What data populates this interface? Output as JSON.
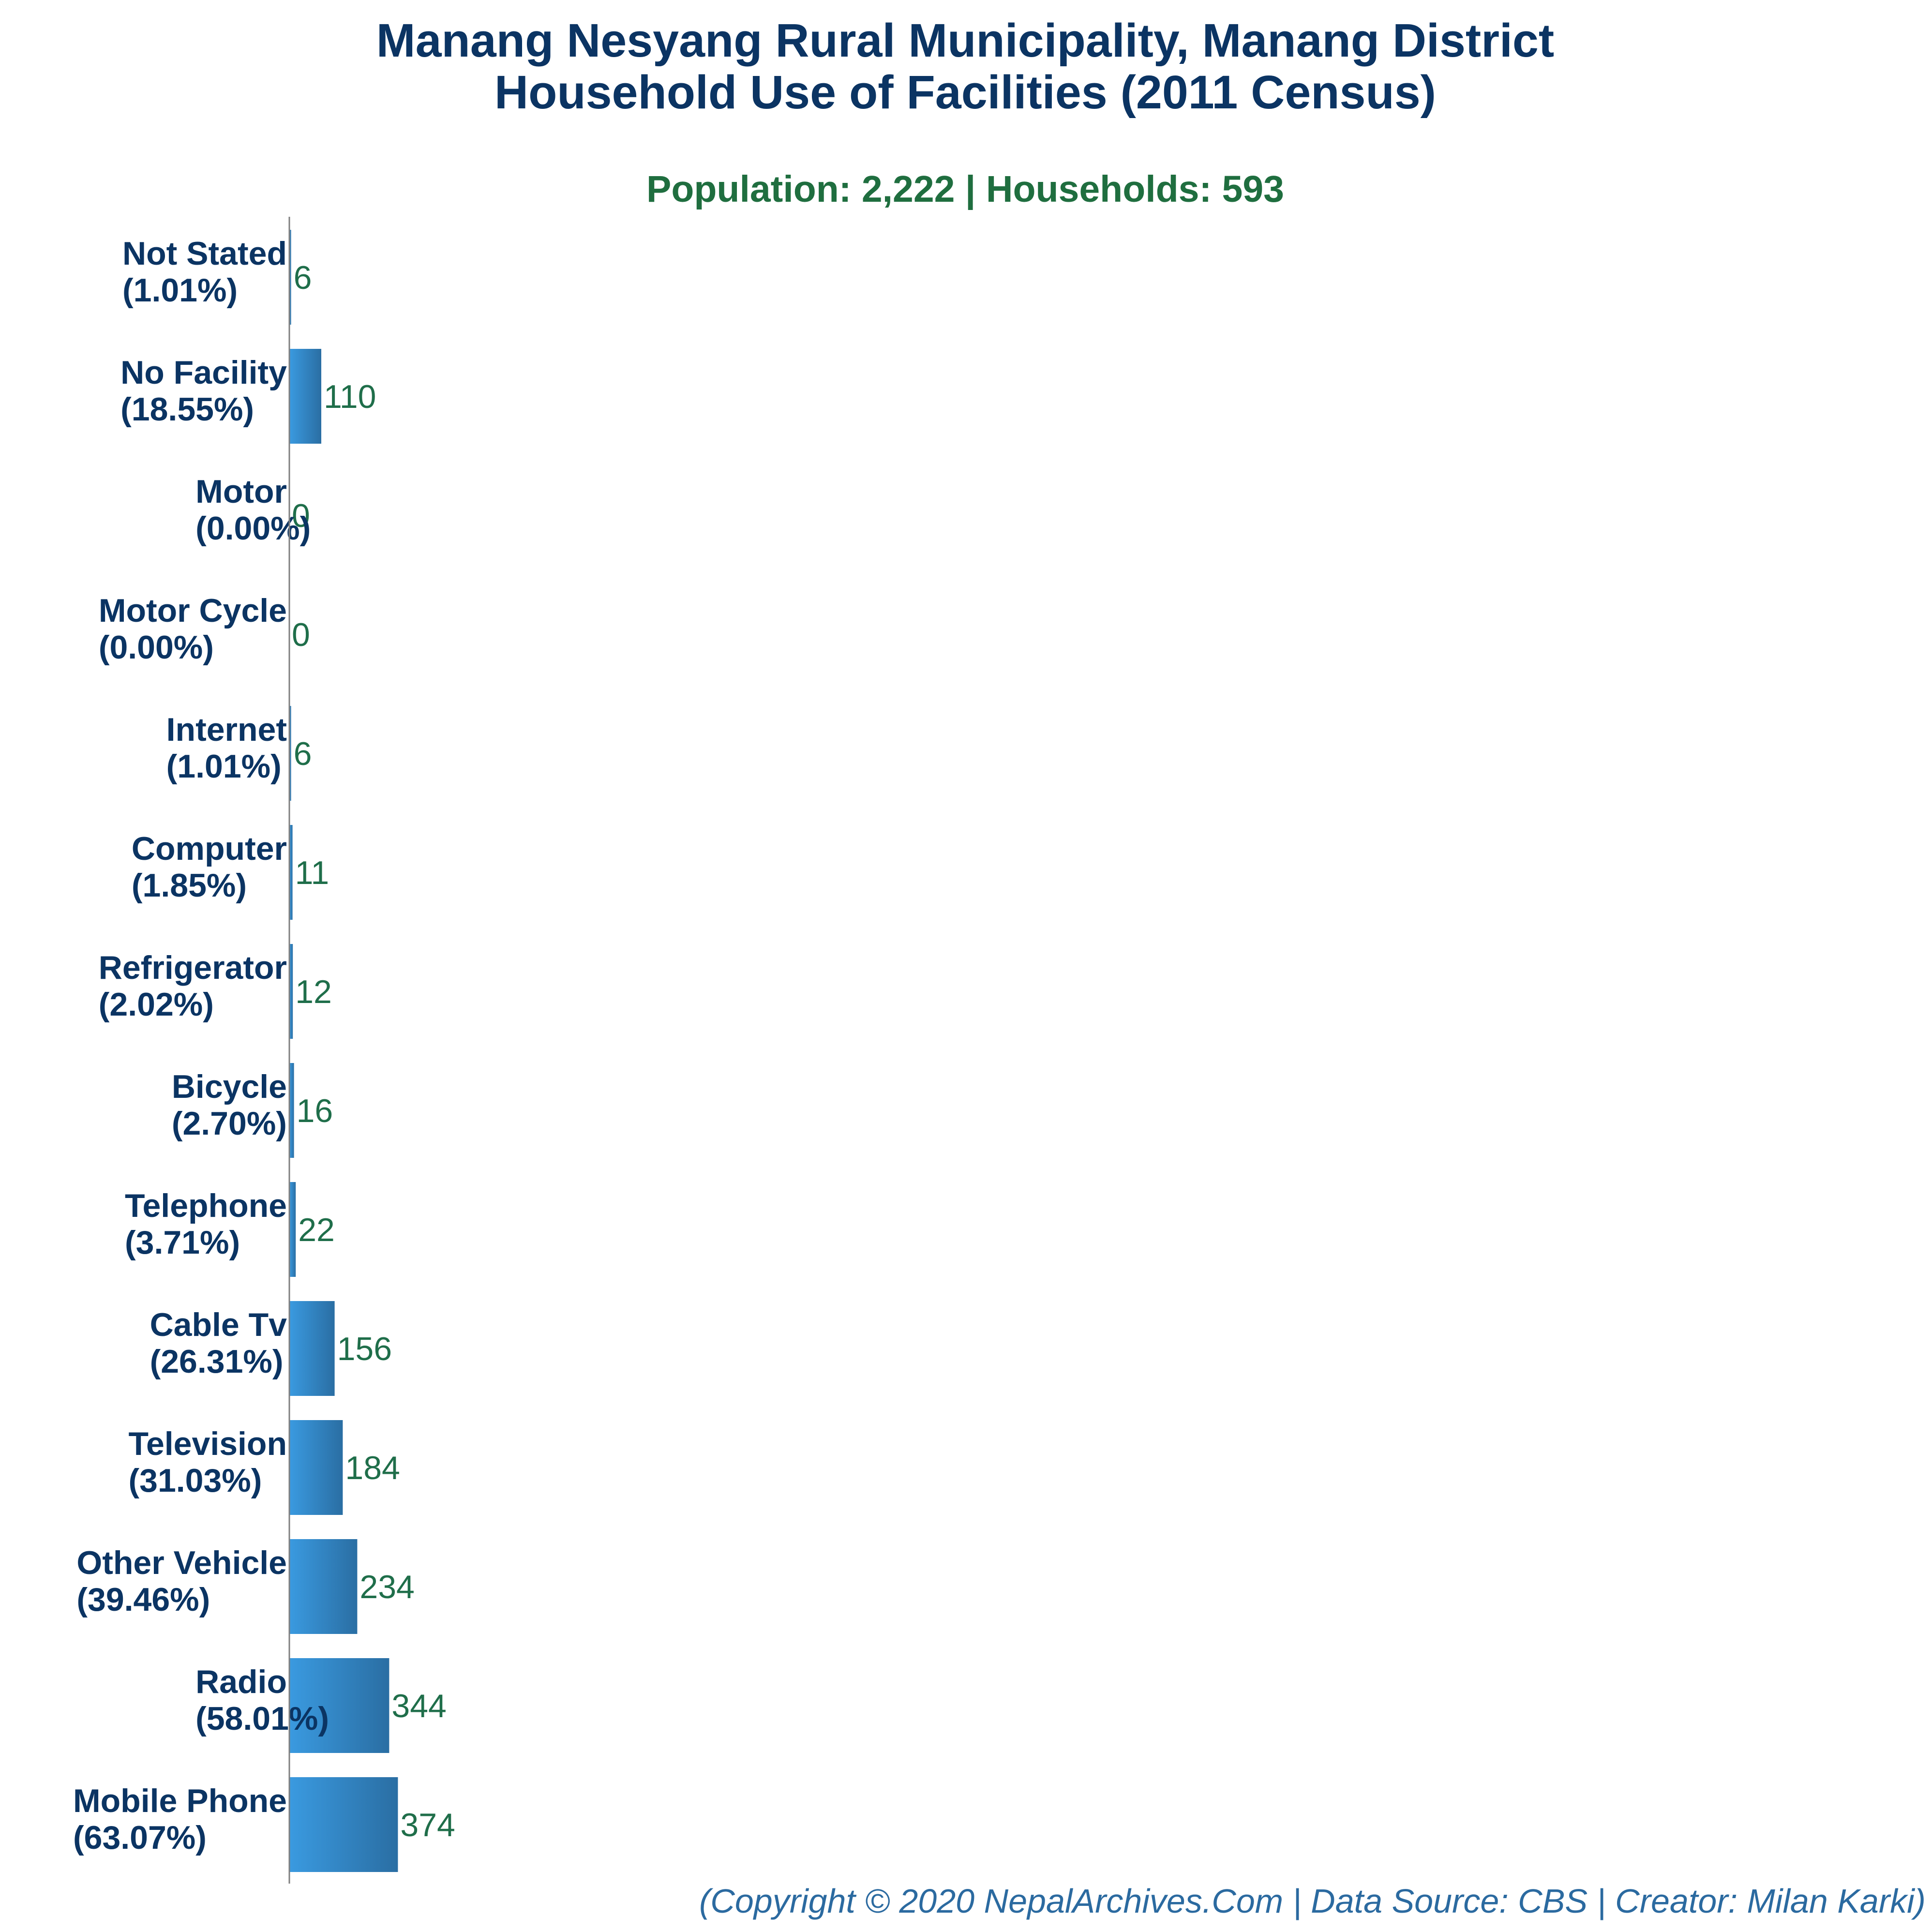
{
  "chart_data": {
    "type": "bar",
    "orientation": "horizontal",
    "title": [
      "Manang Nesyang Rural Municipality, Manang District",
      "Household Use of Facilities (2011 Census)"
    ],
    "subtitle": "Population: 2,222 | Households: 593",
    "xlabel": "",
    "ylabel": "",
    "xlim": [
      0,
      2000
    ],
    "grid": false,
    "legend": "none",
    "categories": [
      {
        "name": "Not Stated",
        "pct": "(1.01%)"
      },
      {
        "name": "No Facility",
        "pct": "(18.55%)"
      },
      {
        "name": "Motor",
        "pct": "(0.00%)"
      },
      {
        "name": "Motor Cycle",
        "pct": "(0.00%)"
      },
      {
        "name": "Internet",
        "pct": "(1.01%)"
      },
      {
        "name": "Computer",
        "pct": "(1.85%)"
      },
      {
        "name": "Refrigerator",
        "pct": "(2.02%)"
      },
      {
        "name": "Bicycle",
        "pct": "(2.70%)"
      },
      {
        "name": "Telephone",
        "pct": "(3.71%)"
      },
      {
        "name": "Cable Tv",
        "pct": "(26.31%)"
      },
      {
        "name": "Television",
        "pct": "(31.03%)"
      },
      {
        "name": "Other Vehicle",
        "pct": "(39.46%)"
      },
      {
        "name": "Radio",
        "pct": "(58.01%)"
      },
      {
        "name": "Mobile Phone",
        "pct": "(63.07%)"
      }
    ],
    "values": [
      6,
      110,
      0,
      0,
      6,
      11,
      12,
      16,
      22,
      156,
      184,
      234,
      344,
      374
    ],
    "value_labels": [
      "6",
      "110",
      "0",
      "0",
      "6",
      "11",
      "12",
      "16",
      "22",
      "156",
      "184",
      "234",
      "344",
      "374"
    ],
    "colors": {
      "bar_light": "#3a9ae0",
      "bar_dark": "#2a6ea3",
      "axis": "#7f7f7f"
    }
  },
  "footer": "(Copyright © 2020 NepalArchives.Com | Data Source: CBS | Creator: Milan Karki)"
}
